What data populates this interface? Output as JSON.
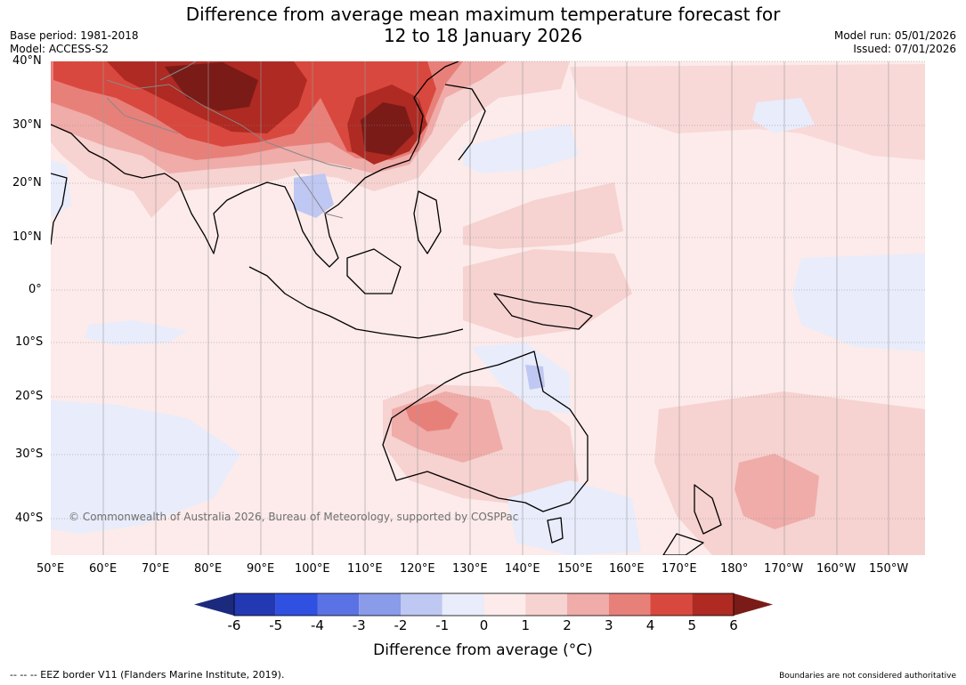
{
  "header": {
    "title_line1": "Difference from average mean maximum temperature forecast for",
    "title_line2": "12 to 18 January 2026",
    "base_period": "Base period: 1981-2018",
    "model": "Model: ACCESS-S2",
    "model_run": "Model run: 05/01/2026",
    "issued": "Issued: 07/01/2026"
  },
  "map": {
    "lat_labels": [
      "40°N",
      "30°N",
      "20°N",
      "10°N",
      "0°",
      "10°S",
      "20°S",
      "30°S",
      "40°S"
    ],
    "lon_labels": [
      "50°E",
      "60°E",
      "70°E",
      "80°E",
      "90°E",
      "100°E",
      "110°E",
      "120°E",
      "130°E",
      "140°E",
      "150°E",
      "160°E",
      "170°E",
      "180°",
      "170°W",
      "160°W",
      "150°W"
    ],
    "copyright": "© Commonwealth of Australia 2026, Bureau of Meteorology, supported by COSPPac"
  },
  "colorbar": {
    "ticks": [
      "-6",
      "-5",
      "-4",
      "-3",
      "-2",
      "-1",
      "0",
      "1",
      "2",
      "3",
      "4",
      "5",
      "6"
    ],
    "colors": [
      "#1c2a7e",
      "#2338b3",
      "#2f50e0",
      "#5a72e3",
      "#8a9bea",
      "#bfc7f3",
      "#e8ecfb",
      "#fcebea",
      "#f6d2d0",
      "#efaca9",
      "#e8807a",
      "#d9483e",
      "#ae2a22",
      "#7a1b17"
    ],
    "title": "Difference from average (°C)"
  },
  "footer": {
    "eez_note": "-- -- -- EEZ border V11 (Flanders Marine Institute, 2019).",
    "disclaimer": "Boundaries are not considered authoritative"
  }
}
